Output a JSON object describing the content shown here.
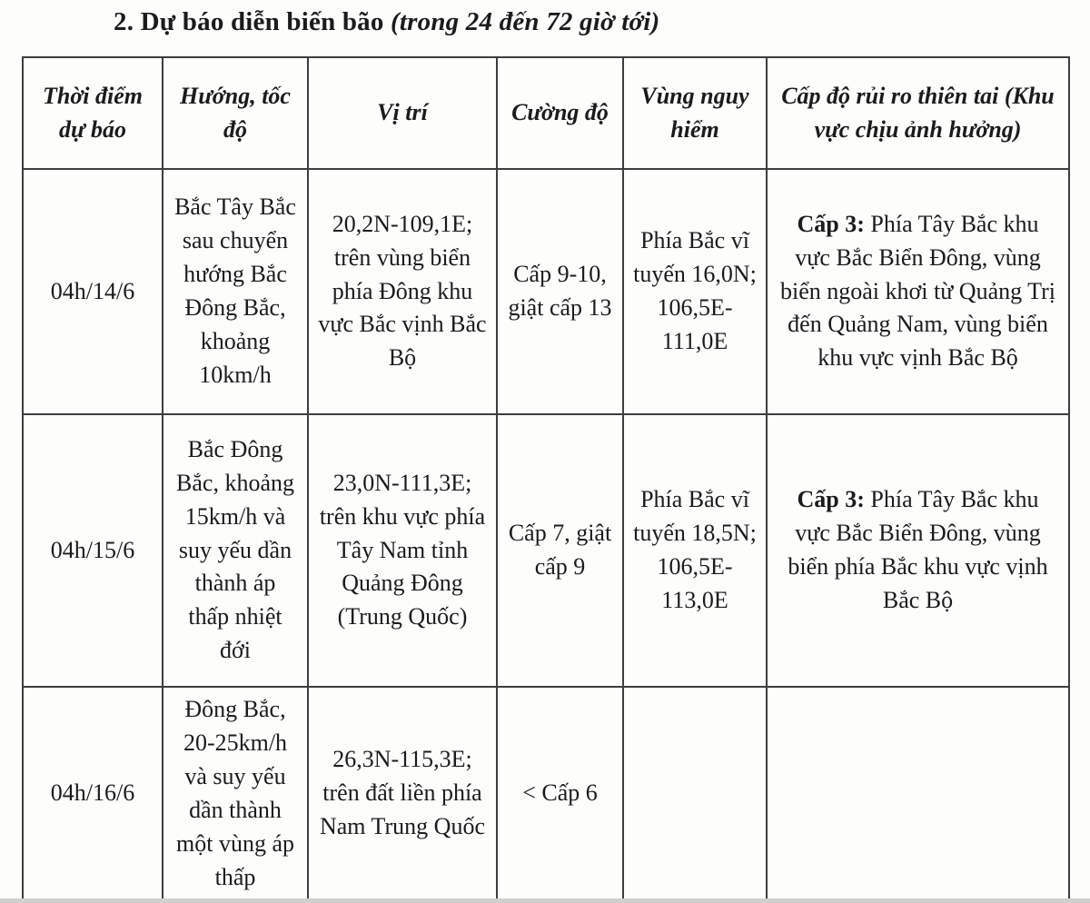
{
  "title": {
    "main": "2. Dự báo diễn biến bão ",
    "paren": "(trong 24 đến 72 giờ tới)"
  },
  "table": {
    "headers": [
      "Thời điểm dự báo",
      "Hướng, tốc độ",
      "Vị trí",
      "Cường độ",
      "Vùng nguy hiểm",
      "Cấp độ rủi ro thiên tai (Khu vực chịu ảnh hưởng)"
    ],
    "rows": [
      {
        "time": "04h/14/6",
        "direction": "Bắc Tây Bắc sau chuyển hướng Bắc Đông Bắc, khoảng 10km/h",
        "position": "20,2N-109,1E; trên vùng biển phía Đông khu vực Bắc vịnh Bắc Bộ",
        "intensity": "Cấp 9-10, giật cấp 13",
        "danger_zone": "Phía Bắc vĩ tuyến 16,0N; 106,5E-111,0E",
        "risk_level_label": "Cấp 3:",
        "risk_area": "Phía Tây Bắc khu vực Bắc Biển Đông, vùng biển ngoài khơi từ Quảng Trị đến Quảng Nam, vùng biển khu vực vịnh Bắc Bộ"
      },
      {
        "time": "04h/15/6",
        "direction": "Bắc Đông Bắc, khoảng 15km/h và suy yếu dần thành áp thấp nhiệt đới",
        "position": "23,0N-111,3E; trên khu vực phía Tây Nam tỉnh Quảng Đông (Trung Quốc)",
        "intensity": "Cấp 7, giật cấp 9",
        "danger_zone": "Phía Bắc vĩ tuyến 18,5N; 106,5E-113,0E",
        "risk_level_label": "Cấp 3:",
        "risk_area": "Phía Tây Bắc khu vực Bắc Biển Đông, vùng biển phía Bắc khu vực vịnh Bắc Bộ"
      },
      {
        "time": "04h/16/6",
        "direction": "Đông Bắc, 20-25km/h và suy yếu dần thành một vùng áp thấp",
        "position": "26,3N-115,3E; trên đất liền phía Nam Trung Quốc",
        "intensity": "< Cấp 6",
        "danger_zone": "",
        "risk_level_label": "",
        "risk_area": ""
      }
    ]
  }
}
